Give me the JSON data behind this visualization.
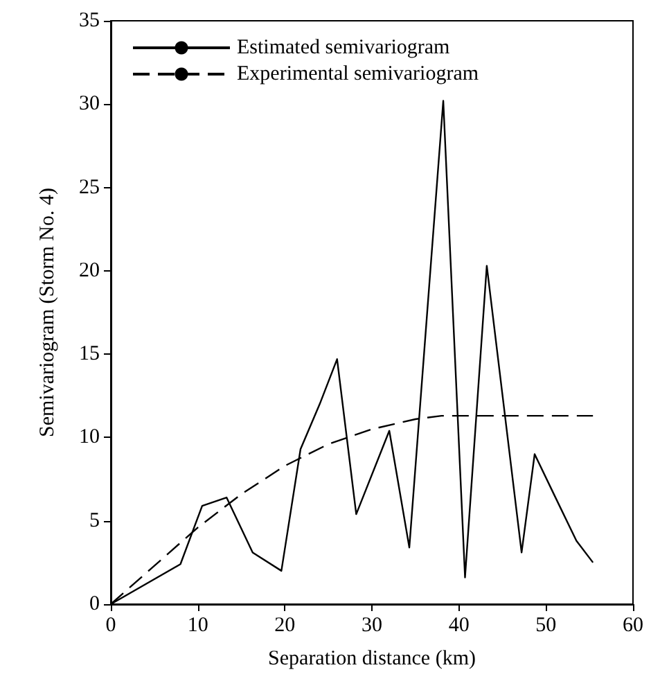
{
  "chart_data": {
    "type": "line",
    "xlabel": "Separation distance (km)",
    "ylabel": "Semivariogram (Storm No. 4)",
    "xlim": [
      0,
      60
    ],
    "xticks": [
      0,
      10,
      20,
      30,
      40,
      50,
      60
    ],
    "ylim": [
      0,
      35
    ],
    "yticks": [
      0,
      5,
      10,
      15,
      20,
      25,
      30,
      35
    ],
    "grid": false,
    "legend": "top left",
    "marker": "none",
    "series": [
      {
        "name": "Estimated semivariogram",
        "color": "#000000",
        "line_style": "solid",
        "x": [
          0,
          8,
          10.5,
          13.3,
          16.3,
          19.6,
          21.8,
          24,
          26,
          28.2,
          32,
          34.3,
          38.2,
          40.7,
          43.2,
          47.2,
          48.7,
          51,
          53.5,
          55.4
        ],
        "values": [
          0,
          2.4,
          5.9,
          6.4,
          3.1,
          2,
          9.3,
          12,
          14.7,
          5.4,
          10.4,
          3.4,
          30.2,
          1.6,
          20.3,
          3.1,
          9,
          6.5,
          3.8,
          2.5
        ]
      },
      {
        "name": "Experimental semivariogram",
        "color": "#000000",
        "line_style": "dashed",
        "x": [
          0,
          5,
          10,
          15,
          20,
          25,
          30,
          35,
          38,
          40,
          55.4
        ],
        "values": [
          0,
          2.3,
          4.6,
          6.6,
          8.3,
          9.6,
          10.5,
          11.1,
          11.3,
          11.3,
          11.3
        ]
      }
    ]
  }
}
